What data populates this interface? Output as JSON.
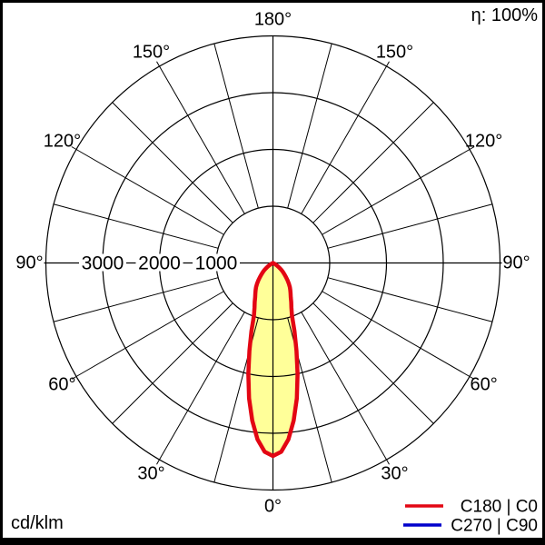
{
  "header": {
    "efficiency": "η: 100%"
  },
  "footer": {
    "unit": "cd/klm"
  },
  "legend": {
    "items": [
      {
        "label": "C180 | C0",
        "color": "#e30613"
      },
      {
        "label": "C270 | C90",
        "color": "#0000cc"
      }
    ]
  },
  "colors": {
    "background": "#ffffff",
    "border": "#000000",
    "grid": "#000000",
    "curve_red": "#e30613",
    "curve_blue": "#0000cc",
    "beam_fill": "#ffff99"
  },
  "chart_data": {
    "type": "polar",
    "subtype": "luminous-intensity-distribution",
    "unit": "cd/klm",
    "radial_max": 4000,
    "radial_rings": [
      1000,
      2000,
      3000,
      4000
    ],
    "radial_tick_labels": [
      "3000",
      "2000",
      "1000"
    ],
    "radial_tick_values": [
      3000,
      2000,
      1000
    ],
    "angle_grid_step_deg": 15,
    "angle_labels": [
      "0°",
      "30°",
      "60°",
      "90°",
      "120°",
      "150°",
      "180°"
    ],
    "efficiency": "η: 100%",
    "legend_position": "bottom-right",
    "series": [
      {
        "name": "C180 | C0",
        "color": "#e30613",
        "fill": "#ffff99",
        "angles_deg": [
          0,
          2.5,
          5,
          7.5,
          10,
          12.5,
          15,
          17.5,
          20,
          22.5,
          25,
          27.5,
          30,
          32.5,
          35,
          37.5,
          40,
          42.5,
          45,
          47.5,
          50,
          52.5,
          55,
          57.5,
          60,
          62.5,
          65
        ],
        "values": [
          3400,
          3330,
          3120,
          2800,
          2420,
          2000,
          1600,
          1260,
          980,
          850,
          760,
          680,
          620,
          570,
          520,
          460,
          400,
          340,
          290,
          240,
          200,
          160,
          120,
          85,
          50,
          25,
          0
        ]
      },
      {
        "name": "C270 | C90",
        "color": "#0000cc",
        "same_as_series": 0
      }
    ]
  }
}
